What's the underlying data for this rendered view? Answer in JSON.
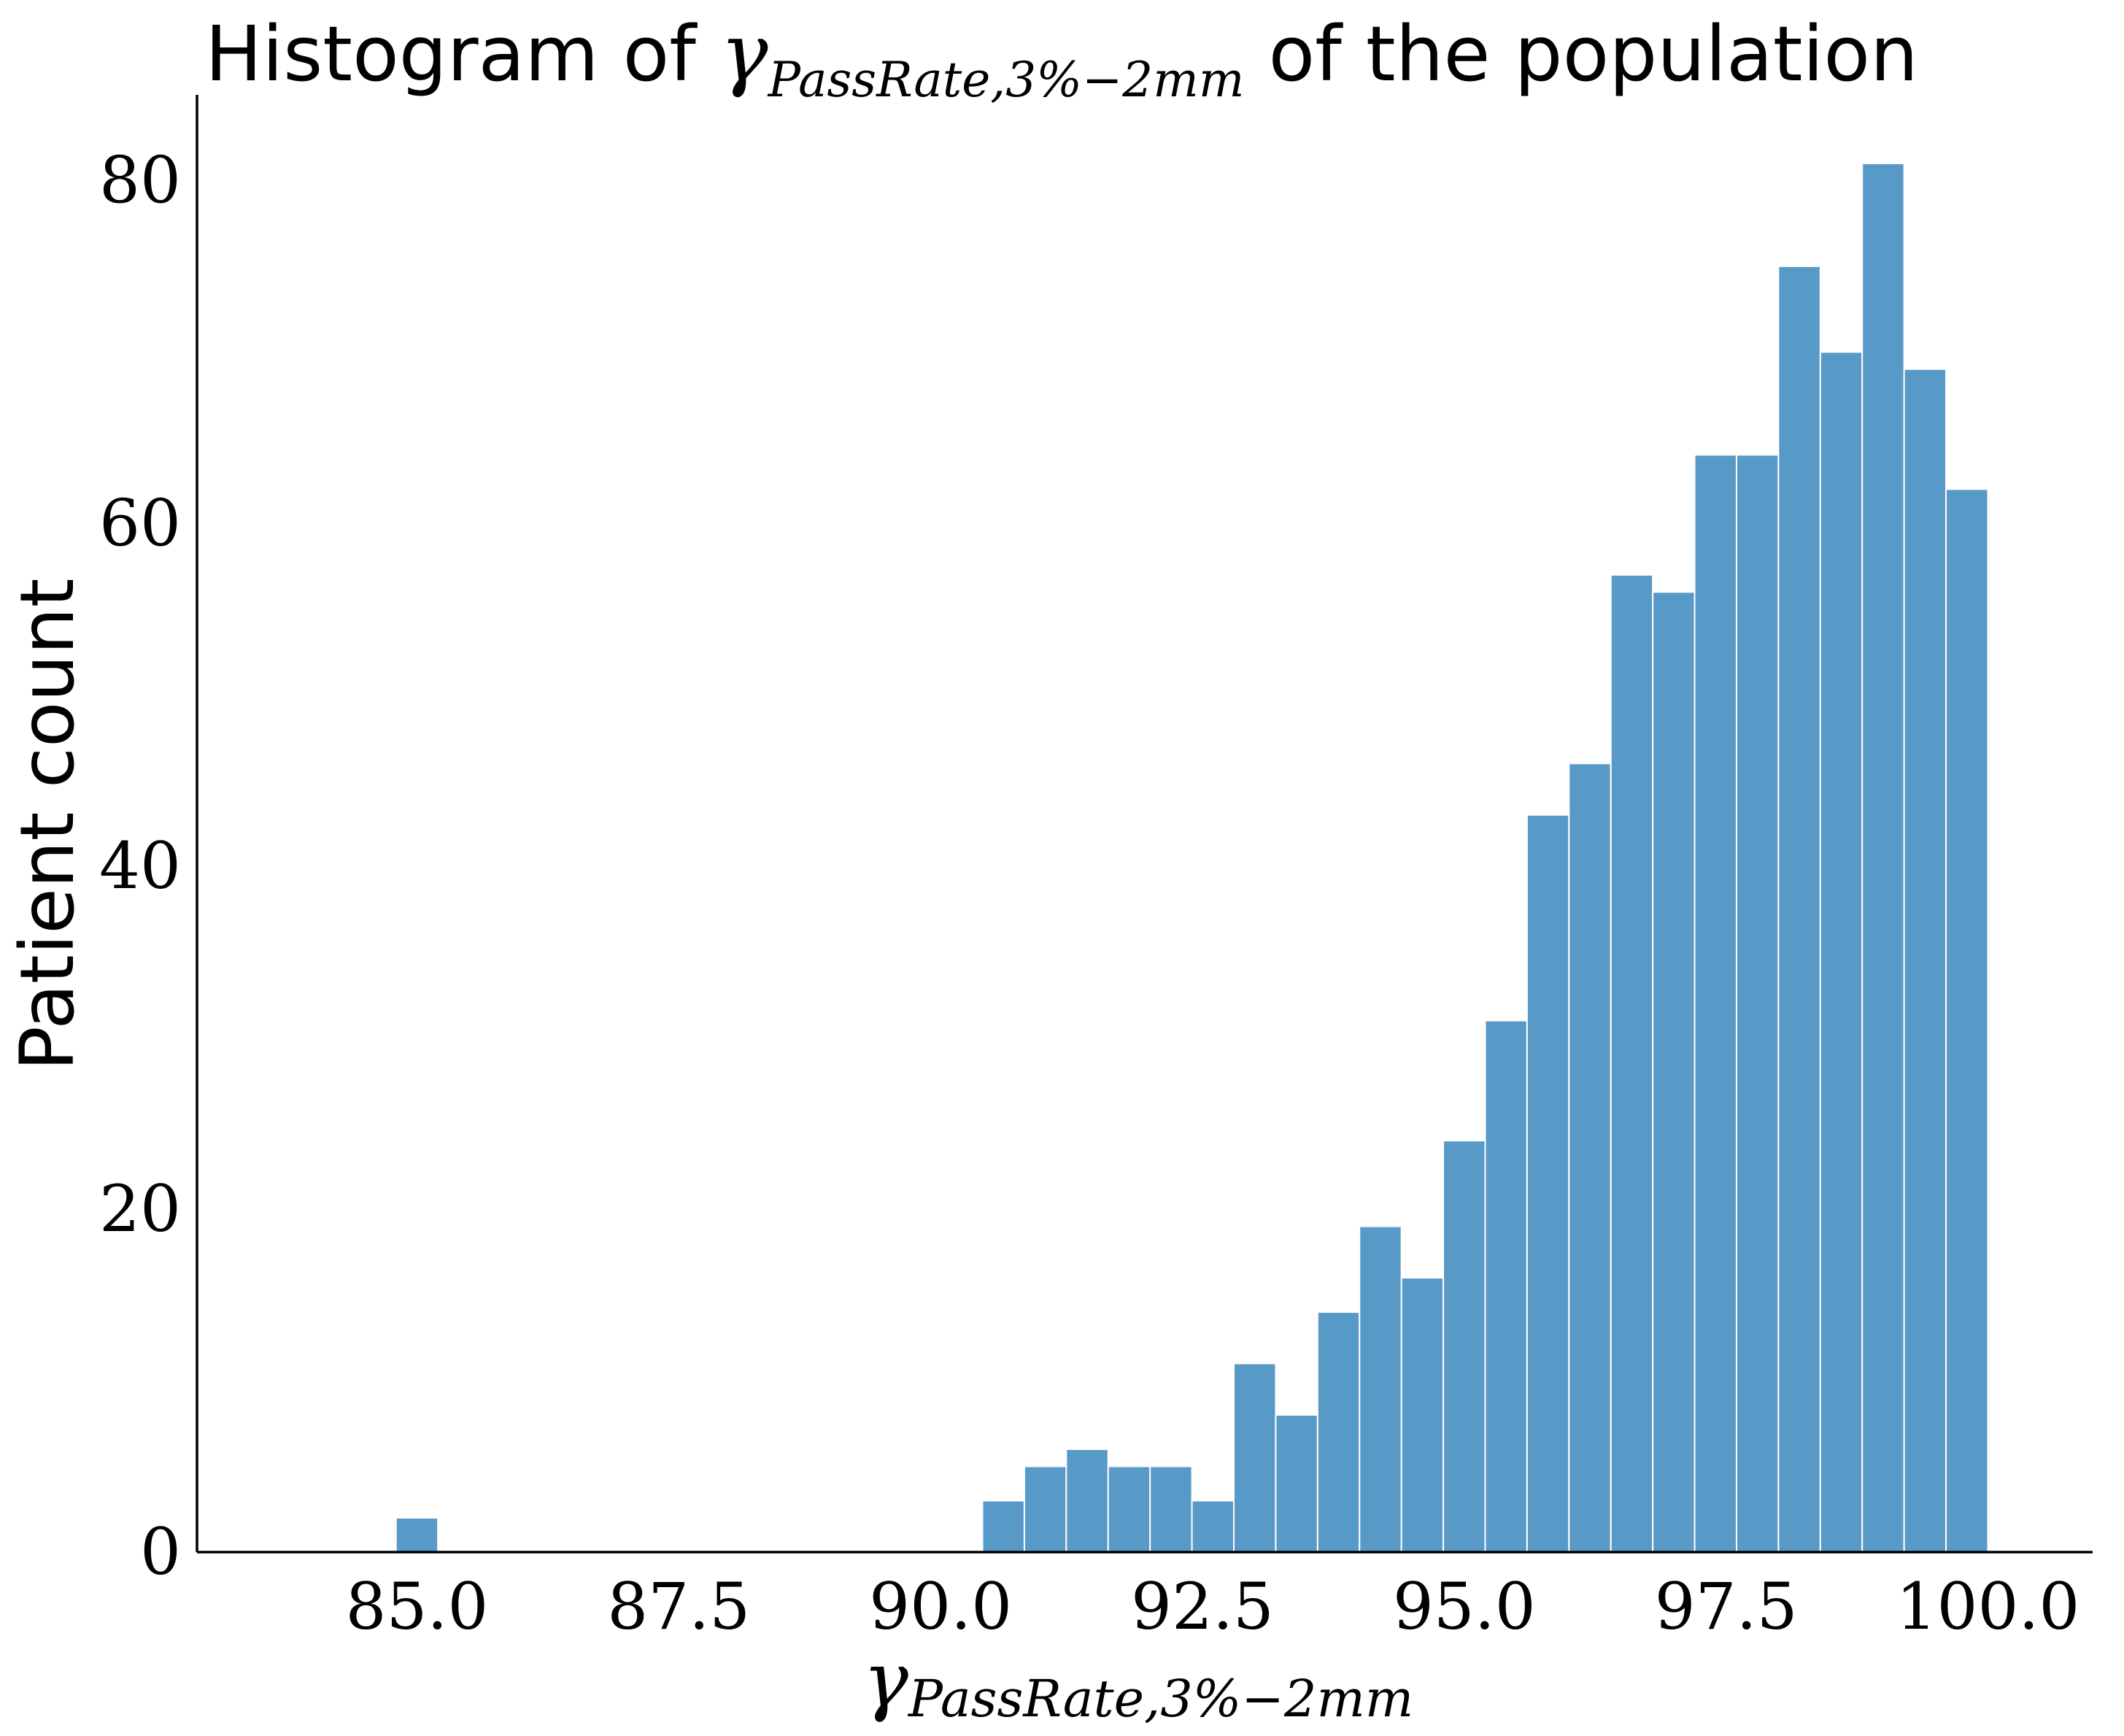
{
  "chart_data": {
    "type": "bar",
    "title": {
      "prefix": "Histogram of ",
      "symbol": "γ",
      "subscript": "PassRate,3%−2mm",
      "suffix": " of the population"
    },
    "xlabel": {
      "symbol": "γ",
      "subscript": "PassRate,3%−2mm"
    },
    "ylabel": "Patient count",
    "xlim": [
      82.9,
      101.0
    ],
    "ylim": [
      0,
      85
    ],
    "xticks": [
      "85.0",
      "87.5",
      "90.0",
      "92.5",
      "95.0",
      "97.5",
      "100.0"
    ],
    "xtick_values": [
      85.0,
      87.5,
      90.0,
      92.5,
      95.0,
      97.5,
      100.0
    ],
    "yticks": [
      "0",
      "20",
      "40",
      "60",
      "80"
    ],
    "ytick_values": [
      0,
      20,
      40,
      60,
      80
    ],
    "bin_width": 0.4,
    "bins": [
      {
        "x0": 84.8,
        "count": 2
      },
      {
        "x0": 90.4,
        "count": 3
      },
      {
        "x0": 90.8,
        "count": 5
      },
      {
        "x0": 91.2,
        "count": 6
      },
      {
        "x0": 91.6,
        "count": 5
      },
      {
        "x0": 92.0,
        "count": 5
      },
      {
        "x0": 92.4,
        "count": 3
      },
      {
        "x0": 92.8,
        "count": 11
      },
      {
        "x0": 93.2,
        "count": 8
      },
      {
        "x0": 93.6,
        "count": 14
      },
      {
        "x0": 94.0,
        "count": 19
      },
      {
        "x0": 94.4,
        "count": 16
      },
      {
        "x0": 94.8,
        "count": 24
      },
      {
        "x0": 95.2,
        "count": 31
      },
      {
        "x0": 95.6,
        "count": 43
      },
      {
        "x0": 96.0,
        "count": 46
      },
      {
        "x0": 96.4,
        "count": 57
      },
      {
        "x0": 96.8,
        "count": 56
      },
      {
        "x0": 97.2,
        "count": 64
      },
      {
        "x0": 97.6,
        "count": 64
      },
      {
        "x0": 98.0,
        "count": 75
      },
      {
        "x0": 98.4,
        "count": 70
      },
      {
        "x0": 98.8,
        "count": 81
      },
      {
        "x0": 99.2,
        "count": 69
      },
      {
        "x0": 99.6,
        "count": 62
      }
    ],
    "bar_color": "#5799c7",
    "grid": false,
    "legend": "none"
  }
}
